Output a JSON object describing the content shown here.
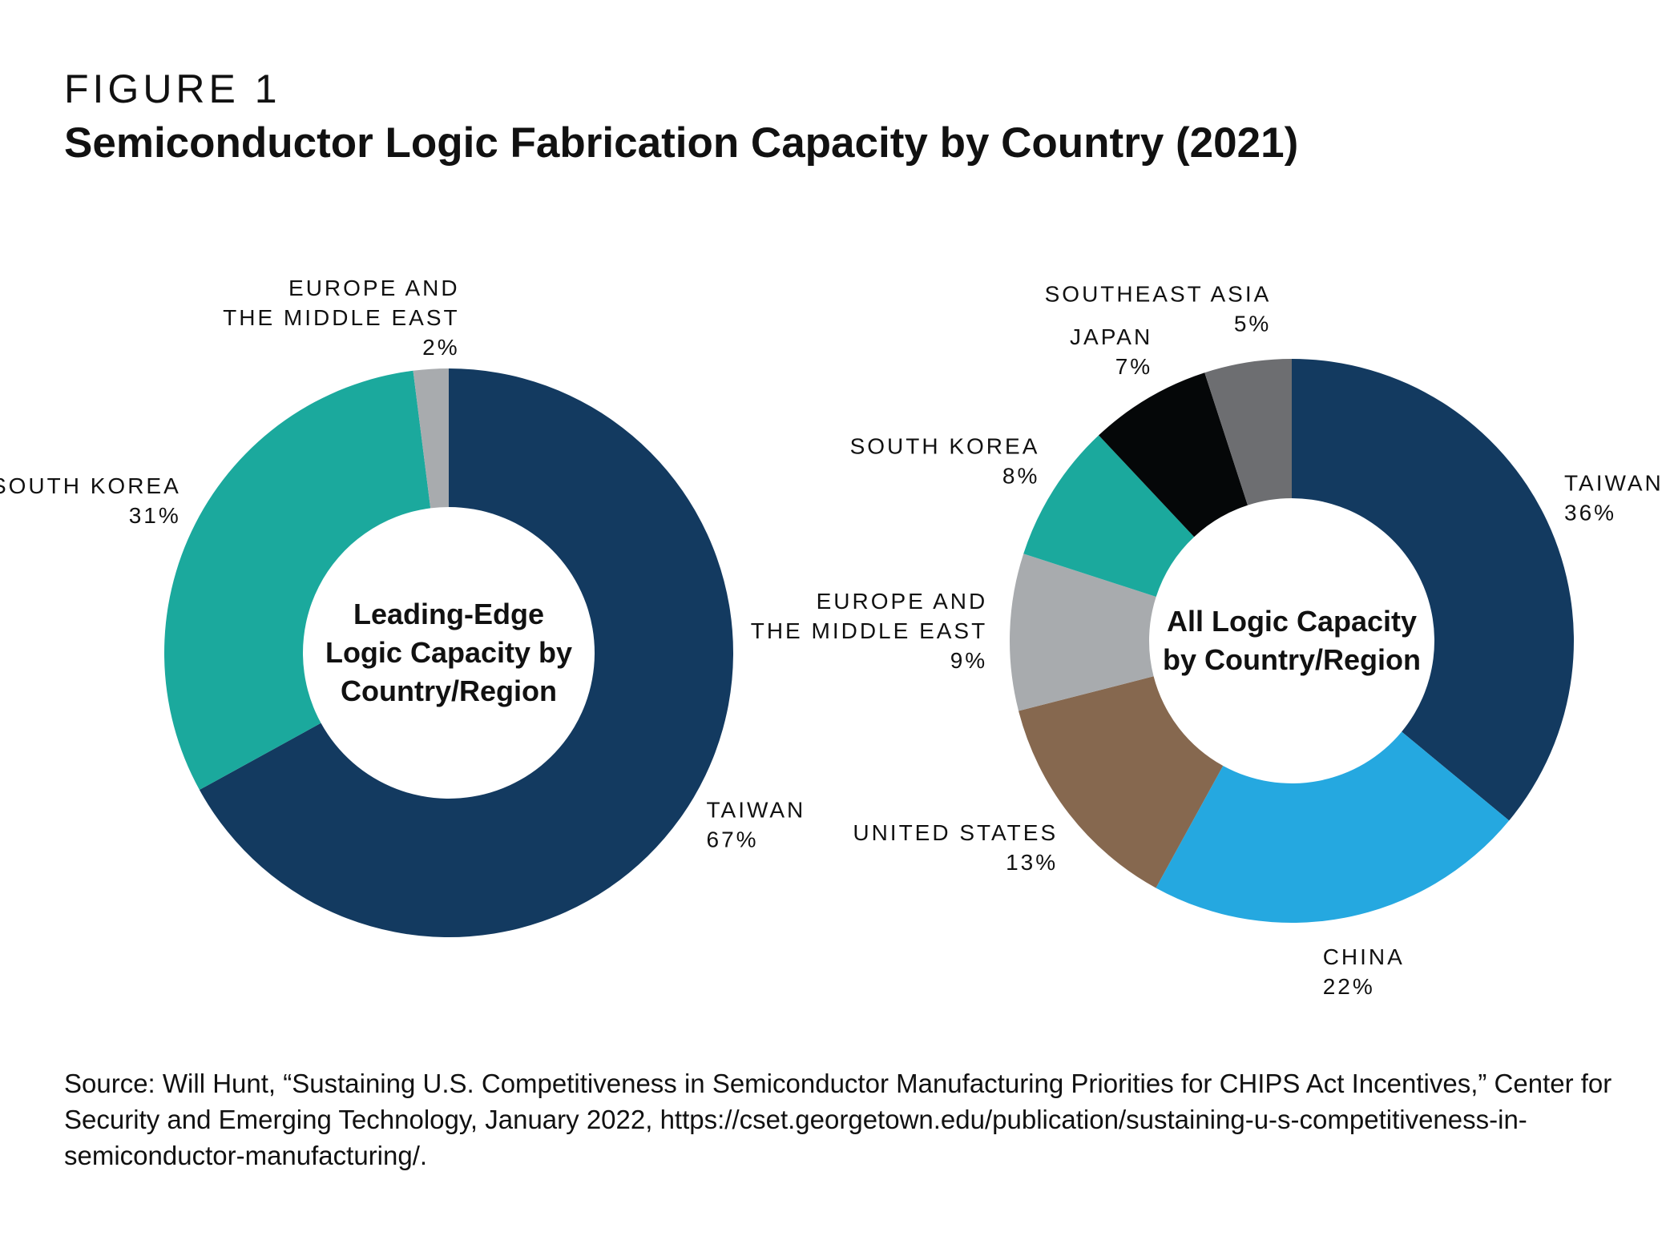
{
  "figure_label": "FIGURE 1",
  "figure_title": "Semiconductor Logic Fabrication Capacity by Country (2021)",
  "source": "Source: Will Hunt, “Sustaining U.S. Competitiveness in Semiconductor Manufacturing Priorities for CHIPS Act Incentives,” Center for Security and Emerging Technology, January 2022, https://cset.georgetown.edu/publication/sustaining-u-s-competitiveness-in-semiconductor-manufacturing/.",
  "chart_data": [
    {
      "type": "pie",
      "subtype": "donut",
      "center_label": [
        "Leading-Edge",
        "Logic Capacity by",
        "Country/Region"
      ],
      "slices": [
        {
          "label": [
            "TAIWAN"
          ],
          "pct_label": "67%",
          "value": 67,
          "color": "#133a60"
        },
        {
          "label": [
            "SOUTH KOREA"
          ],
          "pct_label": "31%",
          "value": 31,
          "color": "#1ba99d"
        },
        {
          "label": [
            "EUROPE AND",
            "THE MIDDLE EAST"
          ],
          "pct_label": "2%",
          "value": 2,
          "color": "#a8abae"
        }
      ]
    },
    {
      "type": "pie",
      "subtype": "donut",
      "center_label": [
        "All Logic Capacity",
        "by Country/Region"
      ],
      "slices": [
        {
          "label": [
            "TAIWAN"
          ],
          "pct_label": "36%",
          "value": 36,
          "color": "#133a60"
        },
        {
          "label": [
            "CHINA"
          ],
          "pct_label": "22%",
          "value": 22,
          "color": "#25a8e0"
        },
        {
          "label": [
            "UNITED STATES"
          ],
          "pct_label": "13%",
          "value": 13,
          "color": "#86684f"
        },
        {
          "label": [
            "EUROPE AND",
            "THE MIDDLE EAST"
          ],
          "pct_label": "9%",
          "value": 9,
          "color": "#a8abae"
        },
        {
          "label": [
            "SOUTH KOREA"
          ],
          "pct_label": "8%",
          "value": 8,
          "color": "#1ba99d"
        },
        {
          "label": [
            "JAPAN"
          ],
          "pct_label": "7%",
          "value": 7,
          "color": "#050708"
        },
        {
          "label": [
            "SOUTHEAST ASIA"
          ],
          "pct_label": "5%",
          "value": 5,
          "color": "#6d6e71"
        }
      ]
    }
  ]
}
